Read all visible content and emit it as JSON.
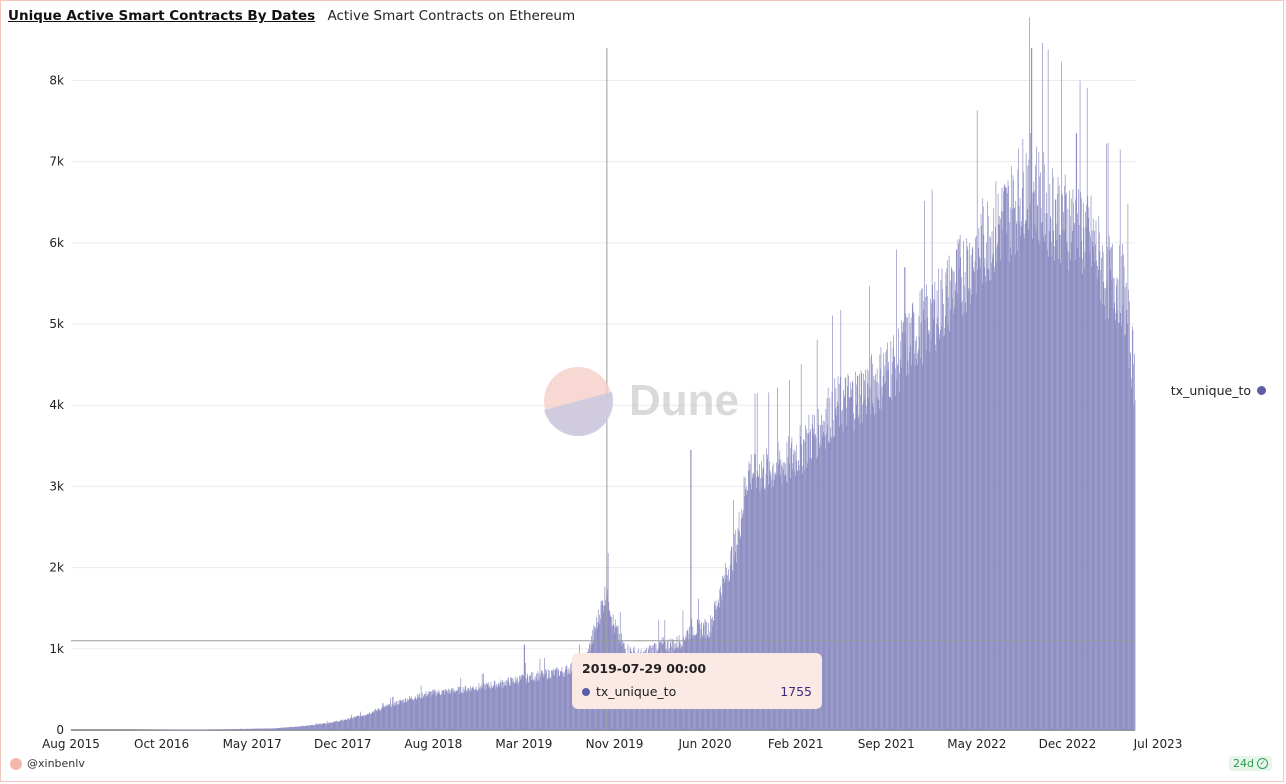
{
  "header": {
    "title": "Unique Active Smart Contracts By Dates",
    "subtitle": "Active Smart Contracts on Ethereum"
  },
  "watermark": {
    "text": "Dune"
  },
  "legend": {
    "label": "tx_unique_to"
  },
  "tooltip": {
    "date": "2019-07-29 00:00",
    "series": "tx_unique_to",
    "value": "1755"
  },
  "footer": {
    "author": "@xinbenlv",
    "age": "24d"
  },
  "colors": {
    "series": "#8f8fc4",
    "series_dot": "#5b5ea6",
    "tooltip_bg": "#fbe9e6",
    "accent": "#f3c6bd"
  },
  "chart_data": {
    "type": "bar",
    "series": [
      {
        "name": "tx_unique_to",
        "points": [
          [
            "2015-08-01",
            0
          ],
          [
            "2016-01-01",
            0
          ],
          [
            "2016-06-01",
            5
          ],
          [
            "2016-10-01",
            10
          ],
          [
            "2017-02-01",
            20
          ],
          [
            "2017-05-01",
            50
          ],
          [
            "2017-08-01",
            110
          ],
          [
            "2017-10-01",
            180
          ],
          [
            "2017-12-01",
            280
          ],
          [
            "2018-02-01",
            380
          ],
          [
            "2018-04-01",
            450
          ],
          [
            "2018-06-01",
            480
          ],
          [
            "2018-08-01",
            520
          ],
          [
            "2018-10-01",
            560
          ],
          [
            "2018-12-01",
            620
          ],
          [
            "2019-02-01",
            680
          ],
          [
            "2019-04-01",
            720
          ],
          [
            "2019-06-01",
            850
          ],
          [
            "2019-07-29",
            1755
          ],
          [
            "2019-08-15",
            1300
          ],
          [
            "2019-09-15",
            1000
          ],
          [
            "2019-11-01",
            900
          ],
          [
            "2019-12-15",
            1050
          ],
          [
            "2020-02-01",
            1050
          ],
          [
            "2020-03-15",
            1250
          ],
          [
            "2020-05-01",
            1250
          ],
          [
            "2020-06-01",
            1700
          ],
          [
            "2020-07-15",
            2300
          ],
          [
            "2020-08-15",
            3200
          ],
          [
            "2020-10-01",
            3200
          ],
          [
            "2020-12-01",
            3300
          ],
          [
            "2021-02-01",
            3600
          ],
          [
            "2021-04-01",
            3950
          ],
          [
            "2021-06-01",
            4100
          ],
          [
            "2021-08-01",
            4300
          ],
          [
            "2021-10-01",
            4600
          ],
          [
            "2021-12-01",
            5000
          ],
          [
            "2022-02-01",
            5300
          ],
          [
            "2022-04-01",
            5700
          ],
          [
            "2022-06-01",
            6100
          ],
          [
            "2022-08-01",
            6400
          ],
          [
            "2022-09-15",
            6800
          ],
          [
            "2022-11-01",
            6500
          ],
          [
            "2023-01-01",
            6300
          ],
          [
            "2023-03-01",
            6100
          ],
          [
            "2023-04-15",
            5600
          ],
          [
            "2023-06-01",
            5500
          ],
          [
            "2023-07-05",
            4300
          ]
        ],
        "peaks": [
          [
            "2017-11-25",
            330
          ],
          [
            "2018-12-15",
            1050
          ],
          [
            "2020-03-12",
            3450
          ],
          [
            "2021-10-15",
            5700
          ],
          [
            "2022-09-25",
            8400
          ],
          [
            "2023-01-25",
            7350
          ]
        ]
      }
    ],
    "x_ticks": [
      "Aug 2015",
      "Oct 2016",
      "May 2017",
      "Dec 2017",
      "Aug 2018",
      "Mar 2019",
      "Nov 2019",
      "Jun 2020",
      "Feb 2021",
      "Sep 2021",
      "May 2022",
      "Dec 2022",
      "Jul 2023"
    ],
    "y_ticks": [
      "0",
      "1k",
      "2k",
      "3k",
      "4k",
      "5k",
      "6k",
      "7k",
      "8k"
    ],
    "xlim": [
      "2015-08-01",
      "2023-07-05"
    ],
    "ylim": [
      0,
      8400
    ],
    "grid": true,
    "legend_position": "right",
    "crosshair": {
      "x": "2019-07-29",
      "y": 1100
    }
  }
}
